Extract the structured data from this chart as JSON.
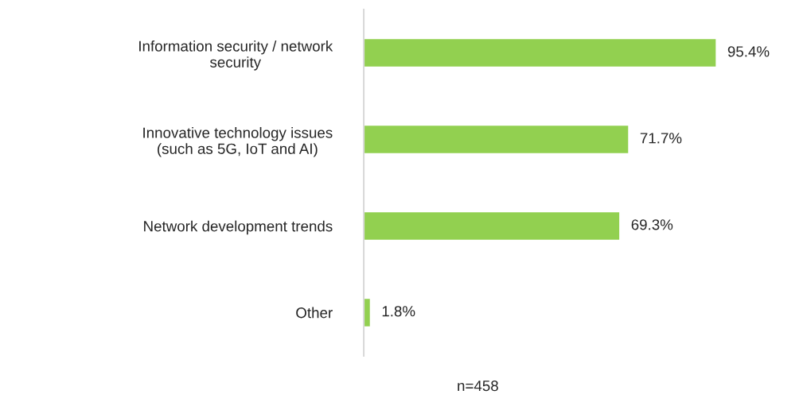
{
  "chart_data": {
    "type": "bar",
    "orientation": "horizontal",
    "categories": [
      "Information security / network\nsecurity",
      "Innovative technology issues\n(such as 5G, IoT and AI)",
      "Network development trends",
      "Other"
    ],
    "values": [
      95.4,
      71.7,
      69.3,
      1.8
    ],
    "value_labels": [
      "95.4%",
      "71.7%",
      "69.3%",
      "1.8%"
    ],
    "color": "#92d050",
    "annotations": [
      "n=458"
    ],
    "grid": false,
    "legend": false
  }
}
